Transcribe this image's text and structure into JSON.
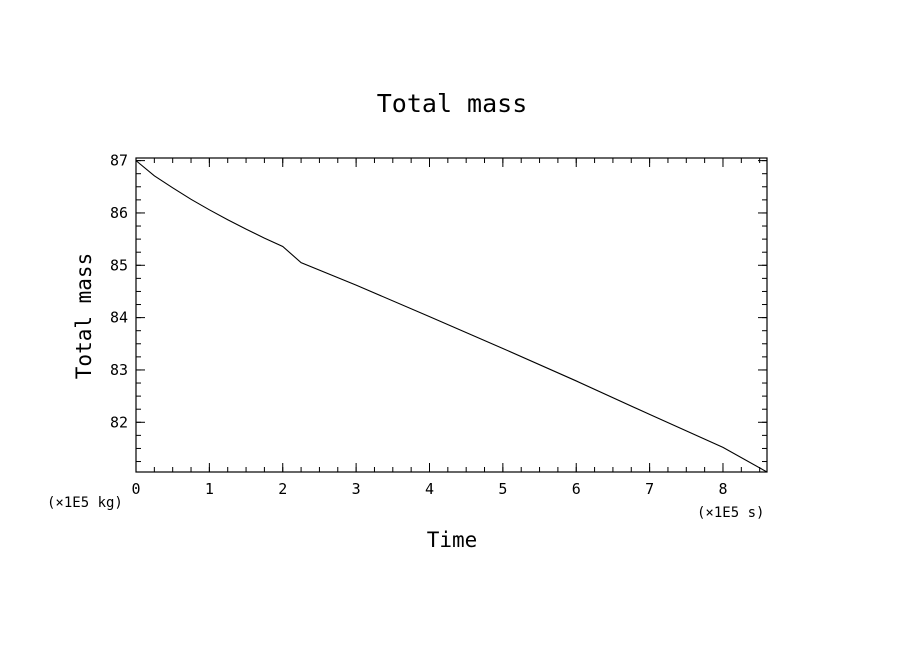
{
  "chart_data": {
    "type": "line",
    "title": "Total mass",
    "xlabel": "Time",
    "ylabel": "Total mass",
    "x_unit": "(×1E5 s)",
    "y_unit": "(×1E5 kg)",
    "xlim": [
      0,
      8.6
    ],
    "ylim": [
      81.05,
      87.05
    ],
    "x_ticks": [
      0,
      1,
      2,
      3,
      4,
      5,
      6,
      7,
      8
    ],
    "y_ticks": [
      82,
      83,
      84,
      85,
      86,
      87
    ],
    "x_minor_step": 0.25,
    "y_minor_step": 0.25,
    "grid": false,
    "series": [
      {
        "x": [
          0,
          0.25,
          0.5,
          0.75,
          1.0,
          1.25,
          1.5,
          1.75,
          2.0,
          2.25,
          3.0,
          4.0,
          5.0,
          6.0,
          7.0,
          8.0,
          8.6
        ],
        "y": [
          87.0,
          86.71,
          86.48,
          86.26,
          86.06,
          85.87,
          85.69,
          85.52,
          85.36,
          85.05,
          84.62,
          84.02,
          83.41,
          82.79,
          82.15,
          81.52,
          81.05
        ]
      }
    ]
  }
}
